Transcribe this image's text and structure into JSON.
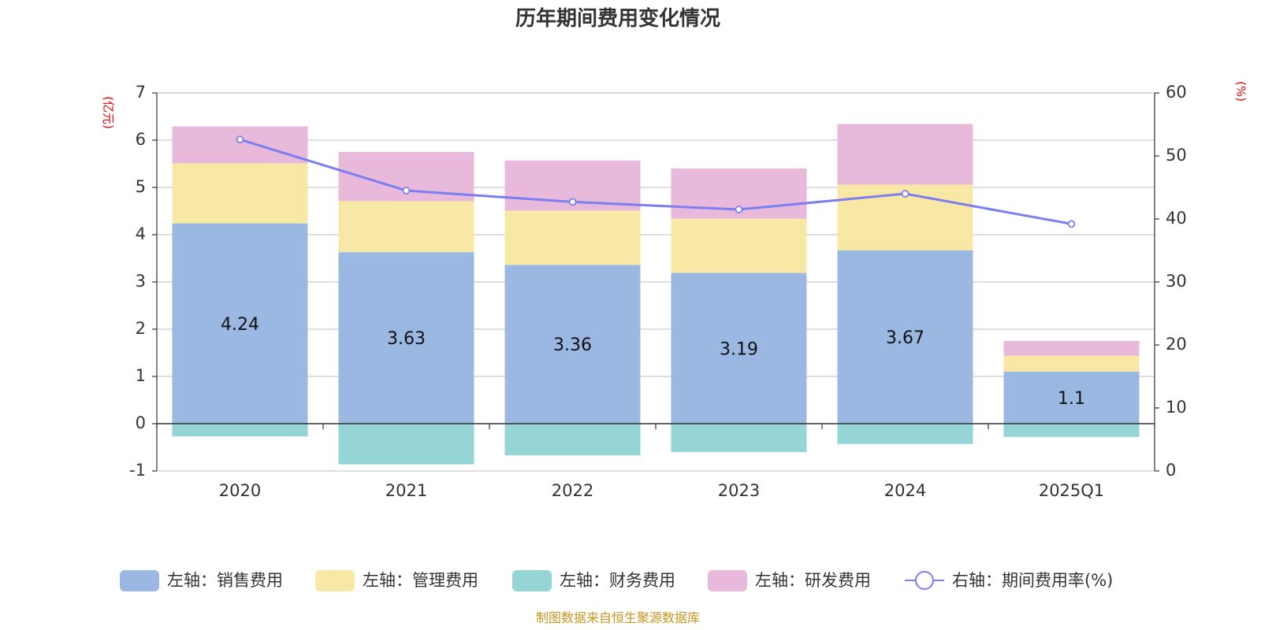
{
  "chart_data": {
    "type": "bar",
    "title": "历年期间费用变化情况",
    "categories": [
      "2020",
      "2021",
      "2022",
      "2023",
      "2024",
      "2025Q1"
    ],
    "left_axis": {
      "unit": "(亿元)",
      "ylim": [
        -1,
        7
      ],
      "ticks": [
        -1,
        0,
        1,
        2,
        3,
        4,
        5,
        6,
        7
      ]
    },
    "right_axis": {
      "unit": "(%)",
      "ylim": [
        0,
        60
      ],
      "ticks": [
        0,
        10,
        20,
        30,
        40,
        50,
        60
      ]
    },
    "series": [
      {
        "name": "左轴：销售费用",
        "type": "bar",
        "stack": true,
        "axis": "left",
        "color": "#9bb8e2",
        "values": [
          4.24,
          3.63,
          3.36,
          3.19,
          3.67,
          1.1
        ],
        "show_labels": true
      },
      {
        "name": "左轴：管理费用",
        "type": "bar",
        "stack": true,
        "axis": "left",
        "color": "#f8e8a6",
        "values": [
          1.27,
          1.08,
          1.15,
          1.15,
          1.39,
          0.34
        ]
      },
      {
        "name": "左轴：财务费用",
        "type": "bar",
        "stack": true,
        "axis": "left",
        "color": "#96d5d5",
        "values": [
          -0.27,
          -0.86,
          -0.67,
          -0.6,
          -0.43,
          -0.28
        ]
      },
      {
        "name": "左轴：研发费用",
        "type": "bar",
        "stack": true,
        "axis": "left",
        "color": "#e8b9da",
        "values": [
          0.78,
          1.04,
          1.06,
          1.06,
          1.28,
          0.31
        ]
      },
      {
        "name": "右轴：期间费用率(%)",
        "type": "line",
        "axis": "right",
        "color": "#7b7ff0",
        "values": [
          52.6,
          44.5,
          42.7,
          41.5,
          44.0,
          39.2
        ]
      }
    ],
    "grid": true,
    "legend_position": "bottom"
  },
  "source_note": "制图数据来自恒生聚源数据库"
}
